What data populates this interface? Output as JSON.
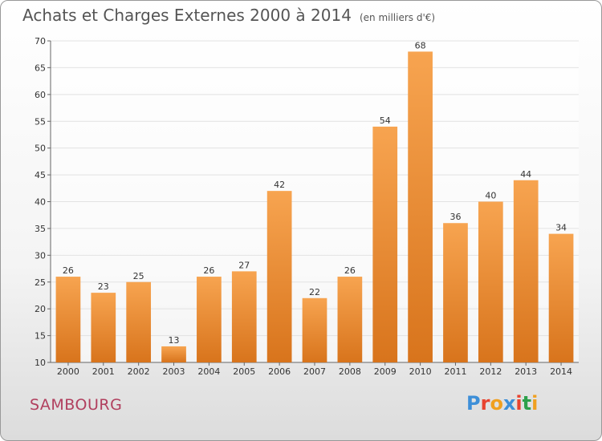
{
  "chart_data": {
    "type": "bar",
    "title": "Achats et Charges Externes 2000 à 2014",
    "subtitle": "(en milliers d'€)",
    "categories": [
      "2000",
      "2001",
      "2002",
      "2003",
      "2004",
      "2005",
      "2006",
      "2007",
      "2008",
      "2009",
      "2010",
      "2011",
      "2012",
      "2013",
      "2014"
    ],
    "values": [
      26,
      23,
      25,
      13,
      26,
      27,
      42,
      22,
      26,
      54,
      68,
      36,
      40,
      44,
      34
    ],
    "ylim": [
      10,
      70
    ],
    "yticks": [
      10,
      15,
      20,
      25,
      30,
      35,
      40,
      45,
      50,
      55,
      60,
      65,
      70
    ],
    "xlabel": "",
    "ylabel": "",
    "colors": {
      "bar_light": "#f7a450",
      "bar_dark": "#d8741c",
      "grid": "#e2e2e2"
    }
  },
  "footer": {
    "commune": "SAMBOURG",
    "logo_text": "Proxiti",
    "logo_colors": [
      "#3d8fd8",
      "#e8432f",
      "#f0a020",
      "#3d8fd8",
      "#e8432f",
      "#2da04a",
      "#f0a020"
    ]
  }
}
